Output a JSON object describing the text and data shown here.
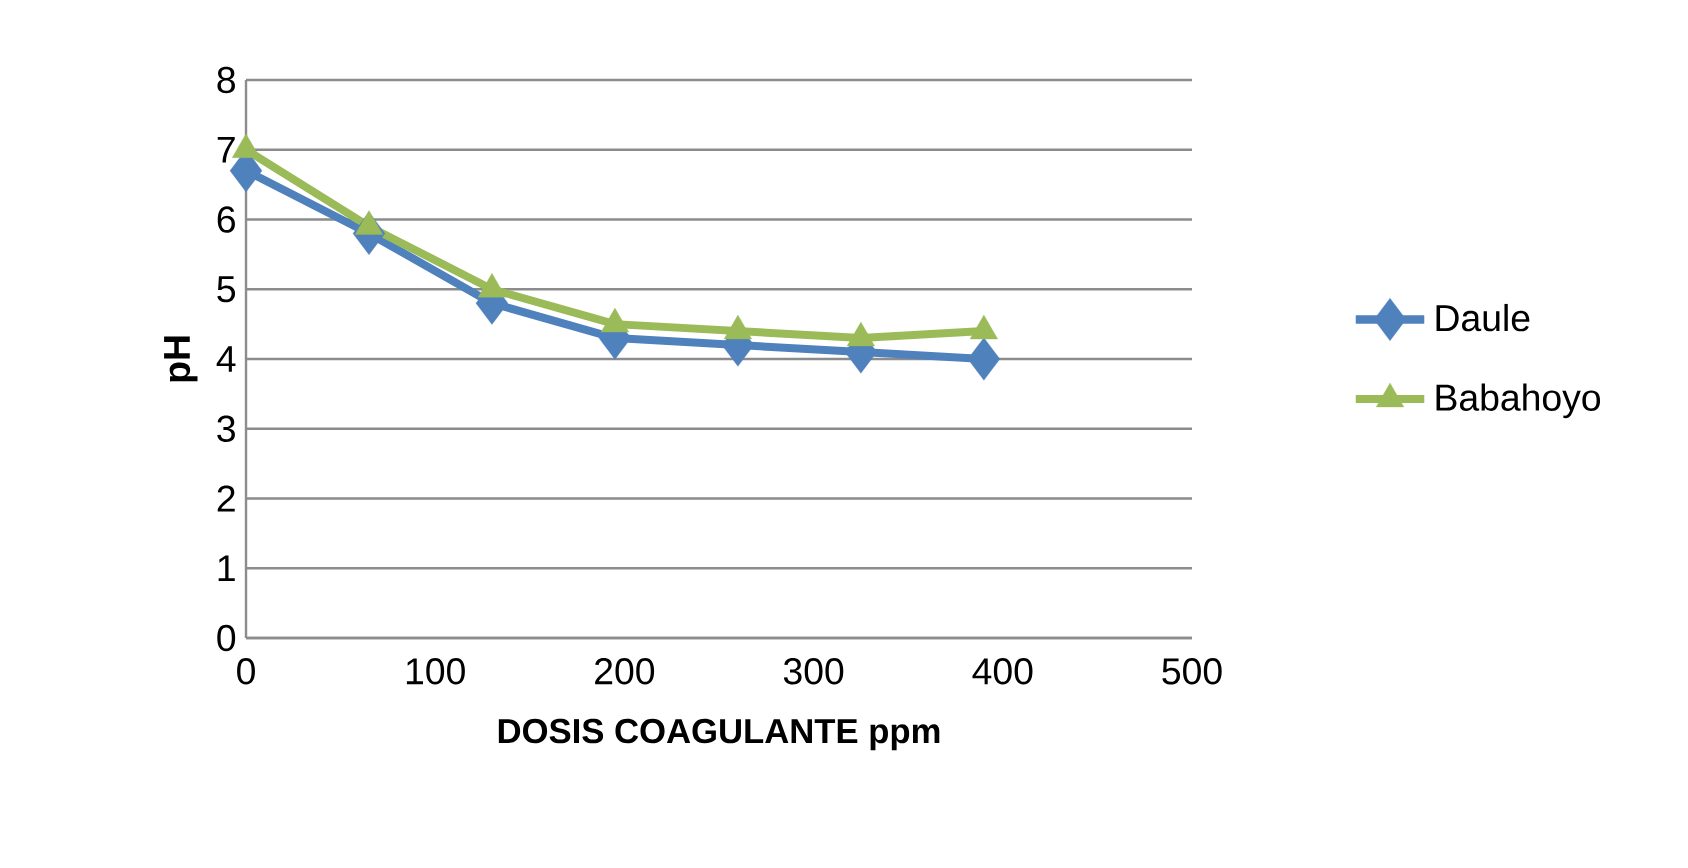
{
  "chart_data": {
    "type": "line",
    "xlabel": "DOSIS COAGULANTE ppm",
    "ylabel": "pH",
    "x": [
      0,
      65,
      130,
      195,
      260,
      325,
      390
    ],
    "series": [
      {
        "name": "Daule",
        "color": "#4f81bd",
        "marker": "diamond",
        "values": [
          6.7,
          5.8,
          4.8,
          4.3,
          4.2,
          4.1,
          4.0
        ]
      },
      {
        "name": "Babahoyo",
        "color": "#9bbb59",
        "marker": "triangle",
        "values": [
          7.0,
          5.9,
          5.0,
          4.5,
          4.4,
          4.3,
          4.4
        ]
      }
    ],
    "xlim": [
      0,
      500
    ],
    "xticks": [
      0,
      100,
      200,
      300,
      400,
      500
    ],
    "ylim": [
      0,
      8
    ],
    "yticks": [
      0,
      1,
      2,
      3,
      4,
      5,
      6,
      7,
      8
    ],
    "grid": "y",
    "legend": "right",
    "line_style": "solid"
  }
}
